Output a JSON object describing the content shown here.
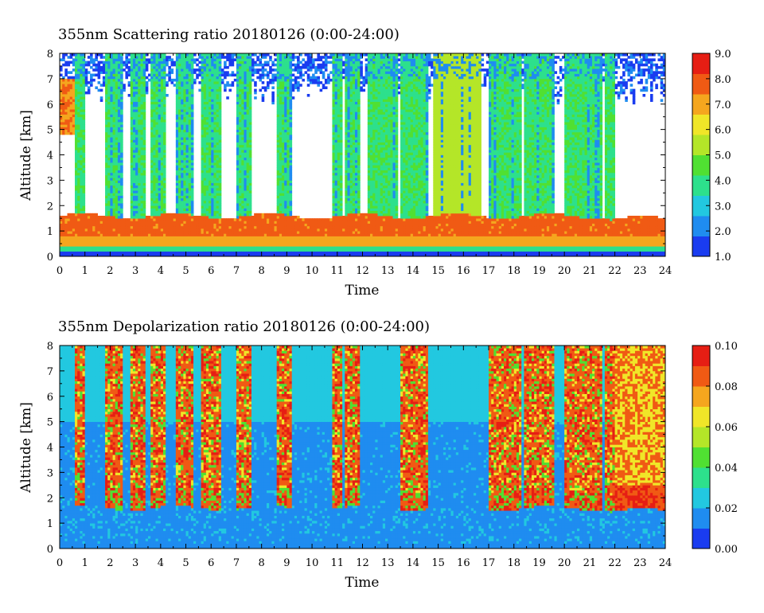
{
  "chart_data": [
    {
      "type": "heatmap",
      "title": "355nm Scattering ratio  20180126 (0:00-24:00)",
      "xlabel": "Time",
      "ylabel": "Altitude [km]",
      "xlim": [
        0,
        24
      ],
      "ylim": [
        0,
        8
      ],
      "x_ticks": [
        "0",
        "1",
        "2",
        "3",
        "4",
        "5",
        "6",
        "7",
        "8",
        "9",
        "10",
        "11",
        "12",
        "13",
        "14",
        "15",
        "16",
        "17",
        "18",
        "19",
        "20",
        "21",
        "22",
        "23",
        "24"
      ],
      "y_ticks": [
        "0",
        "1",
        "2",
        "3",
        "4",
        "5",
        "6",
        "7",
        "8"
      ],
      "colorbar": {
        "min": 1.0,
        "max": 9.0,
        "ticks": [
          "1.0",
          "2.0",
          "3.0",
          "4.0",
          "5.0",
          "6.0",
          "7.0",
          "8.0",
          "9.0"
        ]
      },
      "colormap": [
        "#1a3cf0",
        "#1f8cf0",
        "#22c8e0",
        "#2de08c",
        "#50e032",
        "#b4e628",
        "#f0e628",
        "#f5a61e",
        "#f05a14",
        "#e61e14"
      ],
      "cloud_base_km_approx": 1.6,
      "missing_color": "#ffffff"
    },
    {
      "type": "heatmap",
      "title": "355nm Depolarization ratio  20180126 (0:00-24:00)",
      "xlabel": "Time",
      "ylabel": "Altitude [km]",
      "xlim": [
        0,
        24
      ],
      "ylim": [
        0,
        8
      ],
      "x_ticks": [
        "0",
        "1",
        "2",
        "3",
        "4",
        "5",
        "6",
        "7",
        "8",
        "9",
        "10",
        "11",
        "12",
        "13",
        "14",
        "15",
        "16",
        "17",
        "18",
        "19",
        "20",
        "21",
        "22",
        "23",
        "24"
      ],
      "y_ticks": [
        "0",
        "1",
        "2",
        "3",
        "4",
        "5",
        "6",
        "7",
        "8"
      ],
      "colorbar": {
        "min": 0.0,
        "max": 0.1,
        "ticks": [
          "0.00",
          "0.02",
          "0.04",
          "0.06",
          "0.08",
          "0.10"
        ]
      },
      "colormap": [
        "#1a3cf0",
        "#1f8cf0",
        "#22c8e0",
        "#2de08c",
        "#50e032",
        "#b4e628",
        "#f0e628",
        "#f5a61e",
        "#f05a14",
        "#e61e14"
      ],
      "missing_color": "#ffffff"
    }
  ]
}
